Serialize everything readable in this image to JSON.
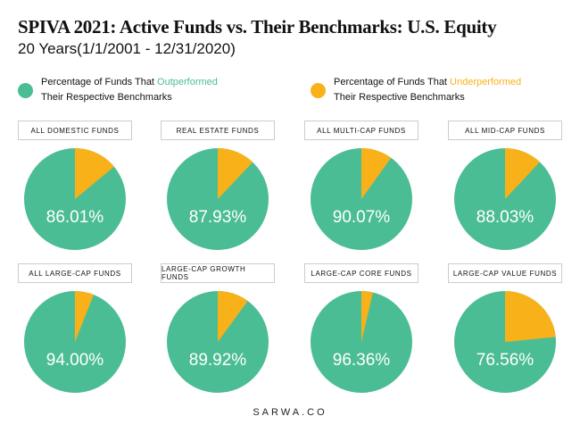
{
  "chart_data": {
    "type": "pie",
    "title": "SPIVA 2021: Active Funds vs. Their Benchmarks: U.S. Equity",
    "subtitle": "20 Years(1/1/2001 - 12/31/2020)",
    "legend": [
      {
        "prefix": "Percentage of Funds That ",
        "highlight": "Outperformed",
        "suffix": "Their Respective Benchmarks",
        "color": "#4bbd94"
      },
      {
        "prefix": "Percentage of Funds That ",
        "highlight": "Underperformed",
        "suffix": "Their Respective Benchmarks",
        "color": "#f9b11a"
      }
    ],
    "legend_placement": "top",
    "pies": [
      {
        "label": "ALL DOMESTIC FUNDS",
        "value": 86.01,
        "text": "86.01%"
      },
      {
        "label": "REAL ESTATE FUNDS",
        "value": 87.93,
        "text": "87.93%"
      },
      {
        "label": "ALL MULTI-CAP FUNDS",
        "value": 90.07,
        "text": "90.07%"
      },
      {
        "label": "ALL MID-CAP FUNDS",
        "value": 88.03,
        "text": "88.03%"
      },
      {
        "label": "ALL LARGE-CAP FUNDS",
        "value": 94.0,
        "text": "94.00%"
      },
      {
        "label": "LARGE-CAP GROWTH FUNDS",
        "value": 89.92,
        "text": "89.92%"
      },
      {
        "label": "LARGE-CAP CORE FUNDS",
        "value": 96.36,
        "text": "96.36%"
      },
      {
        "label": "LARGE-CAP VALUE FUNDS",
        "value": 76.56,
        "text": "76.56%"
      }
    ]
  },
  "footer": "SARWA.CO"
}
